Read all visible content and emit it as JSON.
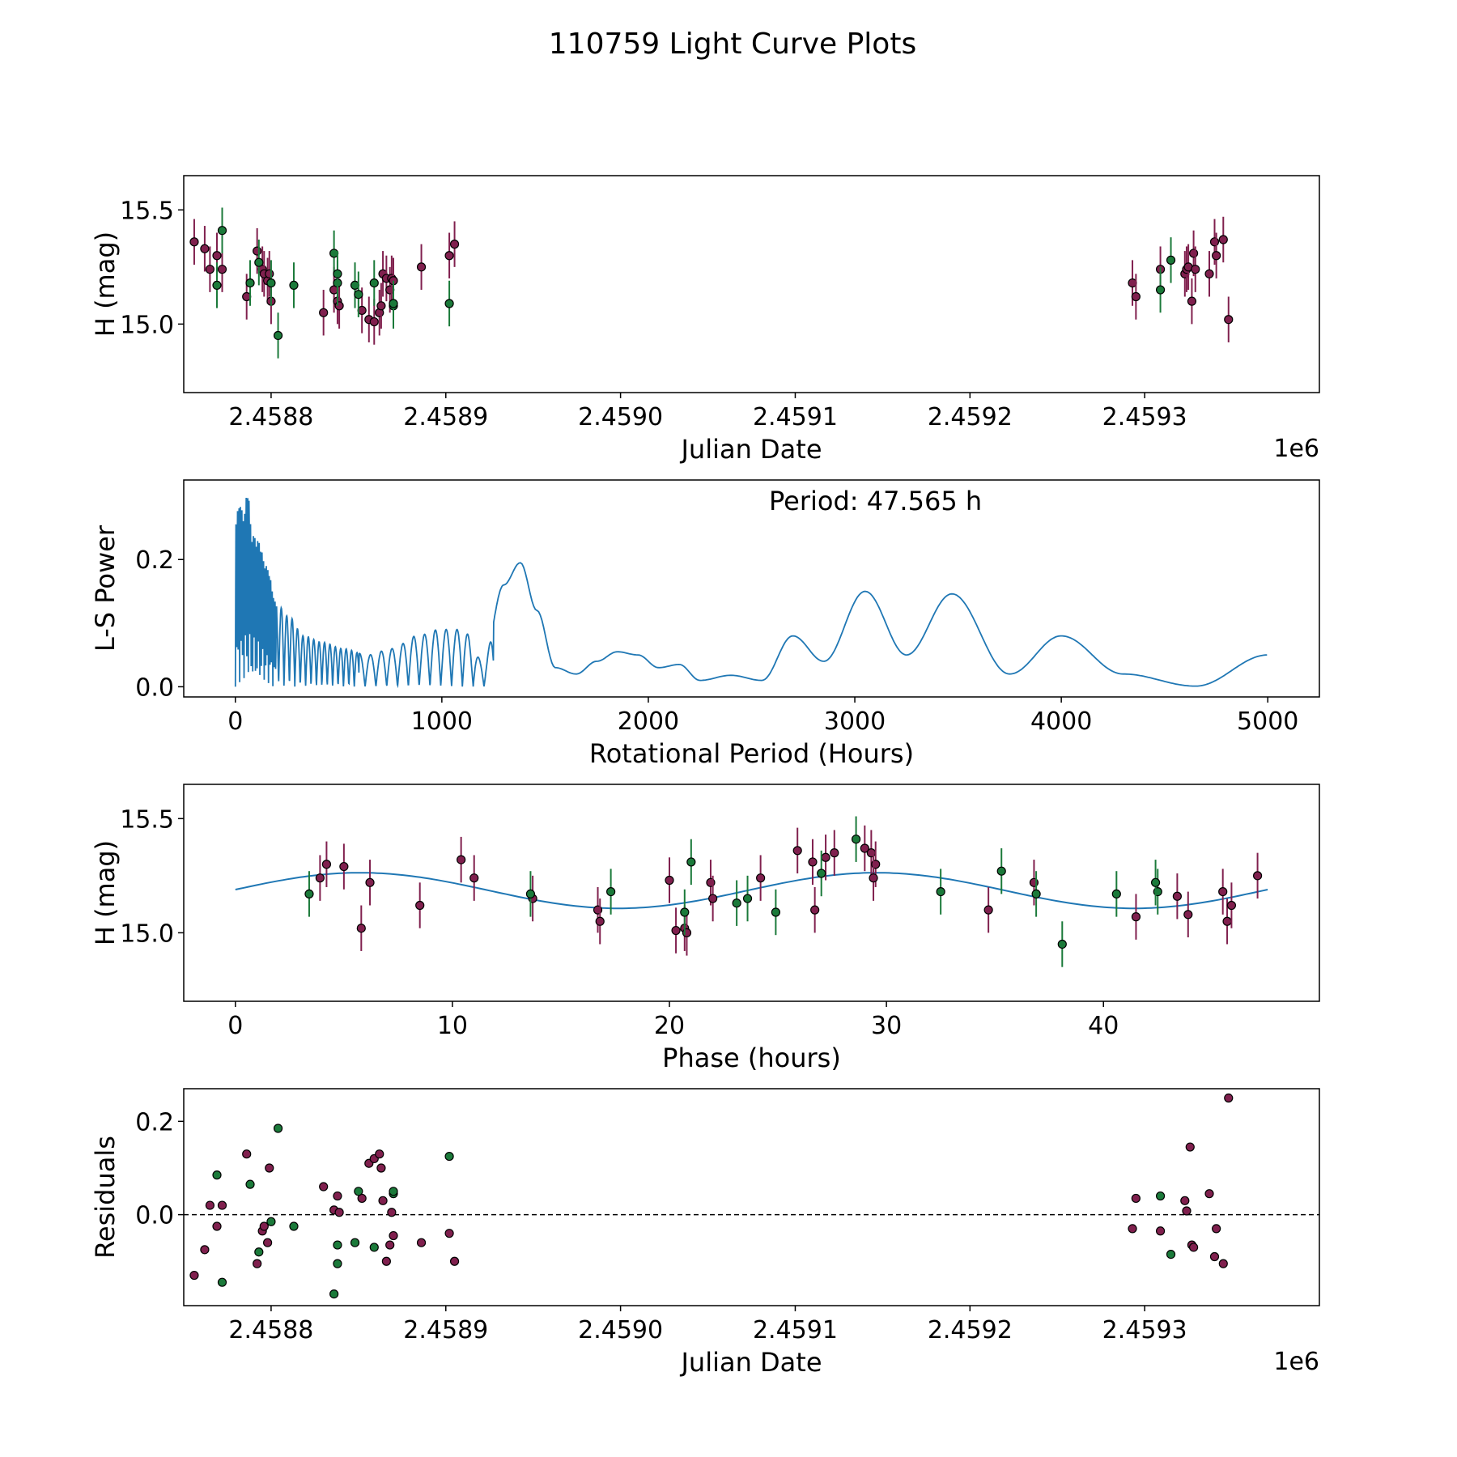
{
  "figure_title": "110759 Light Curve Plots",
  "colors": {
    "maroon": "#80204e",
    "green": "#1b7a3a",
    "curve": "#1f77b4",
    "frame": "#000000"
  },
  "chart_data": [
    {
      "id": "lightcurve",
      "type": "scatter",
      "title": "",
      "xlabel": "Julian Date",
      "ylabel": "H (mag)",
      "x_offset_label": "1e6",
      "xlim": [
        2.45875,
        2.4594
      ],
      "ylim": [
        14.7,
        15.65
      ],
      "xticks": [
        2.4588,
        2.4589,
        2.459,
        2.4591,
        2.4592,
        2.4593
      ],
      "xtick_labels": [
        "2.4588",
        "2.4589",
        "2.4590",
        "2.4591",
        "2.4592",
        "2.4593"
      ],
      "yticks": [
        15.0,
        15.5
      ],
      "ytick_labels": [
        "15.0",
        "15.5"
      ],
      "errorbar_half_height": 0.1,
      "series": [
        {
          "name": "maroon",
          "color": "maroon",
          "x": [
            2.458756,
            2.458762,
            2.458765,
            2.458769,
            2.458772,
            2.458786,
            2.458792,
            2.458795,
            2.458796,
            2.458798,
            2.458799,
            2.4588,
            2.45883,
            2.458836,
            2.458838,
            2.458839,
            2.458852,
            2.458856,
            2.458859,
            2.458862,
            2.458863,
            2.458864,
            2.458866,
            2.458868,
            2.458869,
            2.45887,
            2.458886,
            2.458902,
            2.458905,
            2.459293,
            2.459295,
            2.459309,
            2.459323,
            2.459324,
            2.459325,
            2.459327,
            2.459328,
            2.459329,
            2.459337,
            2.45934,
            2.459341,
            2.459345,
            2.459348
          ],
          "y": [
            15.36,
            15.33,
            15.24,
            15.3,
            15.24,
            15.12,
            15.32,
            15.24,
            15.22,
            15.19,
            15.22,
            15.1,
            15.05,
            15.15,
            15.1,
            15.08,
            15.06,
            15.02,
            15.01,
            15.05,
            15.08,
            15.22,
            15.2,
            15.15,
            15.2,
            15.19,
            15.25,
            15.3,
            15.35,
            15.18,
            15.12,
            15.24,
            15.22,
            15.24,
            15.25,
            15.1,
            15.31,
            15.24,
            15.22,
            15.36,
            15.3,
            15.37,
            15.02
          ]
        },
        {
          "name": "green",
          "color": "green",
          "x": [
            2.458769,
            2.458772,
            2.458788,
            2.458793,
            2.4588,
            2.458804,
            2.458813,
            2.458836,
            2.458838,
            2.458838,
            2.458848,
            2.45885,
            2.458859,
            2.45887,
            2.45887,
            2.458902,
            2.459309,
            2.459315
          ],
          "y": [
            15.17,
            15.41,
            15.18,
            15.27,
            15.18,
            14.95,
            15.17,
            15.31,
            15.18,
            15.22,
            15.17,
            15.13,
            15.18,
            15.08,
            15.09,
            15.09,
            15.15,
            15.28
          ]
        }
      ]
    },
    {
      "id": "periodogram",
      "type": "line",
      "title": "",
      "xlabel": "Rotational Period (Hours)",
      "ylabel": "L-S Power",
      "annotation": "Period: 47.565 h",
      "xlim": [
        -250,
        5250
      ],
      "ylim": [
        -0.016,
        0.325
      ],
      "xticks": [
        0,
        1000,
        2000,
        3000,
        4000,
        5000
      ],
      "xtick_labels": [
        "0",
        "1000",
        "2000",
        "3000",
        "4000",
        "5000"
      ],
      "yticks": [
        0.0,
        0.2
      ],
      "ytick_labels": [
        "0.0",
        "0.2"
      ],
      "series": [
        {
          "name": "L-S Power",
          "color": "curve",
          "x": [
            0,
            20,
            40,
            60,
            80,
            110,
            150,
            200,
            260,
            330,
            420,
            520,
            640,
            760,
            880,
            990,
            1100,
            1200,
            1300,
            1380,
            1460,
            1550,
            1650,
            1750,
            1850,
            1950,
            2050,
            2150,
            2250,
            2400,
            2550,
            2700,
            2850,
            3050,
            3250,
            3470,
            3750,
            4000,
            4300,
            4650,
            5000
          ],
          "y": [
            0.26,
            0.29,
            0.27,
            0.31,
            0.24,
            0.23,
            0.19,
            0.13,
            0.11,
            0.08,
            0.07,
            0.06,
            0.05,
            0.06,
            0.08,
            0.09,
            0.09,
            0.04,
            0.16,
            0.195,
            0.12,
            0.03,
            0.02,
            0.04,
            0.055,
            0.05,
            0.03,
            0.035,
            0.01,
            0.018,
            0.01,
            0.08,
            0.04,
            0.15,
            0.05,
            0.146,
            0.02,
            0.08,
            0.02,
            0.001,
            0.05
          ]
        }
      ]
    },
    {
      "id": "phase",
      "type": "scatter",
      "title": "",
      "xlabel": "Phase (hours)",
      "ylabel": "H (mag)",
      "xlim": [
        -2.38,
        49.95
      ],
      "ylim": [
        14.7,
        15.65
      ],
      "xticks": [
        0,
        10,
        20,
        30,
        40
      ],
      "xtick_labels": [
        "0",
        "10",
        "20",
        "30",
        "40"
      ],
      "yticks": [
        15.0,
        15.5
      ],
      "ytick_labels": [
        "15.0",
        "15.5"
      ],
      "errorbar_half_height": 0.1,
      "fit": {
        "mean": 15.185,
        "amplitude": 0.078,
        "period": 23.78,
        "peak_phase": 5.75,
        "x_range": [
          0,
          47.565
        ]
      },
      "series": [
        {
          "name": "maroon",
          "color": "maroon",
          "x": [
            3.9,
            4.2,
            5.0,
            5.8,
            6.2,
            8.5,
            10.4,
            11.0,
            13.7,
            16.7,
            16.8,
            20.0,
            20.3,
            20.7,
            20.8,
            21.9,
            22.0,
            24.2,
            25.9,
            26.6,
            26.7,
            27.2,
            27.6,
            29.0,
            29.3,
            29.5,
            29.4,
            34.7,
            36.8,
            41.5,
            43.4,
            43.9,
            45.5,
            45.7,
            45.9,
            47.1
          ],
          "y": [
            15.24,
            15.3,
            15.29,
            15.02,
            15.22,
            15.12,
            15.32,
            15.24,
            15.15,
            15.1,
            15.05,
            15.23,
            15.01,
            15.02,
            15.0,
            15.22,
            15.15,
            15.24,
            15.36,
            15.31,
            15.1,
            15.33,
            15.35,
            15.37,
            15.35,
            15.3,
            15.24,
            15.1,
            15.22,
            15.07,
            15.16,
            15.08,
            15.18,
            15.05,
            15.12,
            15.25
          ]
        },
        {
          "name": "green",
          "color": "green",
          "x": [
            3.4,
            13.6,
            17.3,
            20.7,
            21.0,
            23.1,
            23.6,
            24.9,
            27.0,
            28.6,
            32.5,
            35.3,
            36.9,
            38.1,
            40.6,
            42.5,
            42.4
          ],
          "y": [
            15.17,
            15.17,
            15.18,
            15.09,
            15.31,
            15.13,
            15.15,
            15.09,
            15.26,
            15.41,
            15.18,
            15.27,
            15.17,
            14.95,
            15.17,
            15.18,
            15.22
          ]
        }
      ]
    },
    {
      "id": "residuals",
      "type": "scatter",
      "title": "",
      "xlabel": "Julian Date",
      "ylabel": "Residuals",
      "x_offset_label": "1e6",
      "xlim": [
        2.45875,
        2.4594
      ],
      "ylim": [
        -0.195,
        0.27
      ],
      "xticks": [
        2.4588,
        2.4589,
        2.459,
        2.4591,
        2.4592,
        2.4593
      ],
      "xtick_labels": [
        "2.4588",
        "2.4589",
        "2.4590",
        "2.4591",
        "2.4592",
        "2.4593"
      ],
      "yticks": [
        0.0,
        0.2
      ],
      "ytick_labels": [
        "0.0",
        "0.2"
      ],
      "reference_line": 0.0,
      "series": [
        {
          "name": "maroon",
          "color": "maroon",
          "x": [
            2.458756,
            2.458762,
            2.458765,
            2.458769,
            2.458772,
            2.458786,
            2.458792,
            2.458795,
            2.458796,
            2.458798,
            2.458799,
            2.45883,
            2.458836,
            2.458838,
            2.458839,
            2.458852,
            2.458856,
            2.458859,
            2.458862,
            2.458863,
            2.458864,
            2.458866,
            2.458868,
            2.458869,
            2.45887,
            2.458886,
            2.458902,
            2.458905,
            2.459293,
            2.459295,
            2.459309,
            2.459323,
            2.459324,
            2.459326,
            2.459327,
            2.459328,
            2.459337,
            2.45934,
            2.459341,
            2.459345,
            2.459348
          ],
          "y": [
            -0.13,
            -0.075,
            0.02,
            -0.025,
            0.02,
            0.13,
            -0.105,
            -0.035,
            -0.025,
            -0.06,
            0.1,
            0.06,
            0.01,
            0.04,
            0.005,
            0.035,
            0.11,
            0.12,
            0.13,
            0.1,
            0.03,
            -0.1,
            -0.065,
            0.005,
            -0.045,
            -0.06,
            -0.04,
            -0.1,
            -0.03,
            0.035,
            -0.035,
            0.03,
            0.008,
            0.145,
            -0.065,
            -0.07,
            0.045,
            -0.09,
            -0.03,
            -0.105,
            0.25
          ]
        },
        {
          "name": "green",
          "color": "green",
          "x": [
            2.458769,
            2.458772,
            2.458788,
            2.458793,
            2.4588,
            2.458804,
            2.458813,
            2.458836,
            2.458838,
            2.458838,
            2.458848,
            2.45885,
            2.458859,
            2.45887,
            2.45887,
            2.458902,
            2.459309,
            2.459315
          ],
          "y": [
            0.085,
            -0.145,
            0.065,
            -0.08,
            -0.015,
            0.185,
            -0.025,
            -0.17,
            -0.065,
            -0.105,
            -0.06,
            0.05,
            -0.07,
            0.045,
            0.05,
            0.125,
            0.04,
            -0.085
          ]
        }
      ]
    }
  ]
}
